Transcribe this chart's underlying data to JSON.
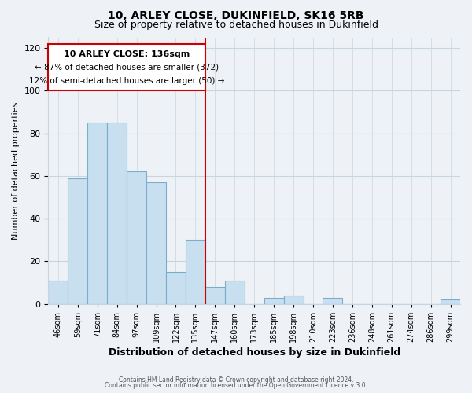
{
  "title": "10, ARLEY CLOSE, DUKINFIELD, SK16 5RB",
  "subtitle": "Size of property relative to detached houses in Dukinfield",
  "xlabel": "Distribution of detached houses by size in Dukinfield",
  "ylabel": "Number of detached properties",
  "bar_labels": [
    "46sqm",
    "59sqm",
    "71sqm",
    "84sqm",
    "97sqm",
    "109sqm",
    "122sqm",
    "135sqm",
    "147sqm",
    "160sqm",
    "173sqm",
    "185sqm",
    "198sqm",
    "210sqm",
    "223sqm",
    "236sqm",
    "248sqm",
    "261sqm",
    "274sqm",
    "286sqm",
    "299sqm"
  ],
  "bar_values": [
    11,
    59,
    85,
    85,
    62,
    57,
    15,
    30,
    8,
    11,
    0,
    3,
    4,
    0,
    3,
    0,
    0,
    0,
    0,
    0,
    2
  ],
  "bar_color": "#c8dff0",
  "bar_edge_color": "#7aaccc",
  "highlight_index": 7,
  "vline_x": 7.5,
  "ylim": [
    0,
    125
  ],
  "yticks": [
    0,
    20,
    40,
    60,
    80,
    100,
    120
  ],
  "annotation_title": "10 ARLEY CLOSE: 136sqm",
  "annotation_line1": "← 87% of detached houses are smaller (372)",
  "annotation_line2": "12% of semi-detached houses are larger (50) →",
  "annotation_box_color": "#ffffff",
  "annotation_box_edge": "#cc0000",
  "vline_color": "#cc0000",
  "footer1": "Contains HM Land Registry data © Crown copyright and database right 2024.",
  "footer2": "Contains public sector information licensed under the Open Government Licence v 3.0.",
  "background_color": "#eef2f7",
  "plot_bg_color": "#eef2f7",
  "grid_color": "#c8d4e0",
  "title_fontsize": 10,
  "subtitle_fontsize": 9,
  "xlabel_fontsize": 9,
  "ylabel_fontsize": 8
}
